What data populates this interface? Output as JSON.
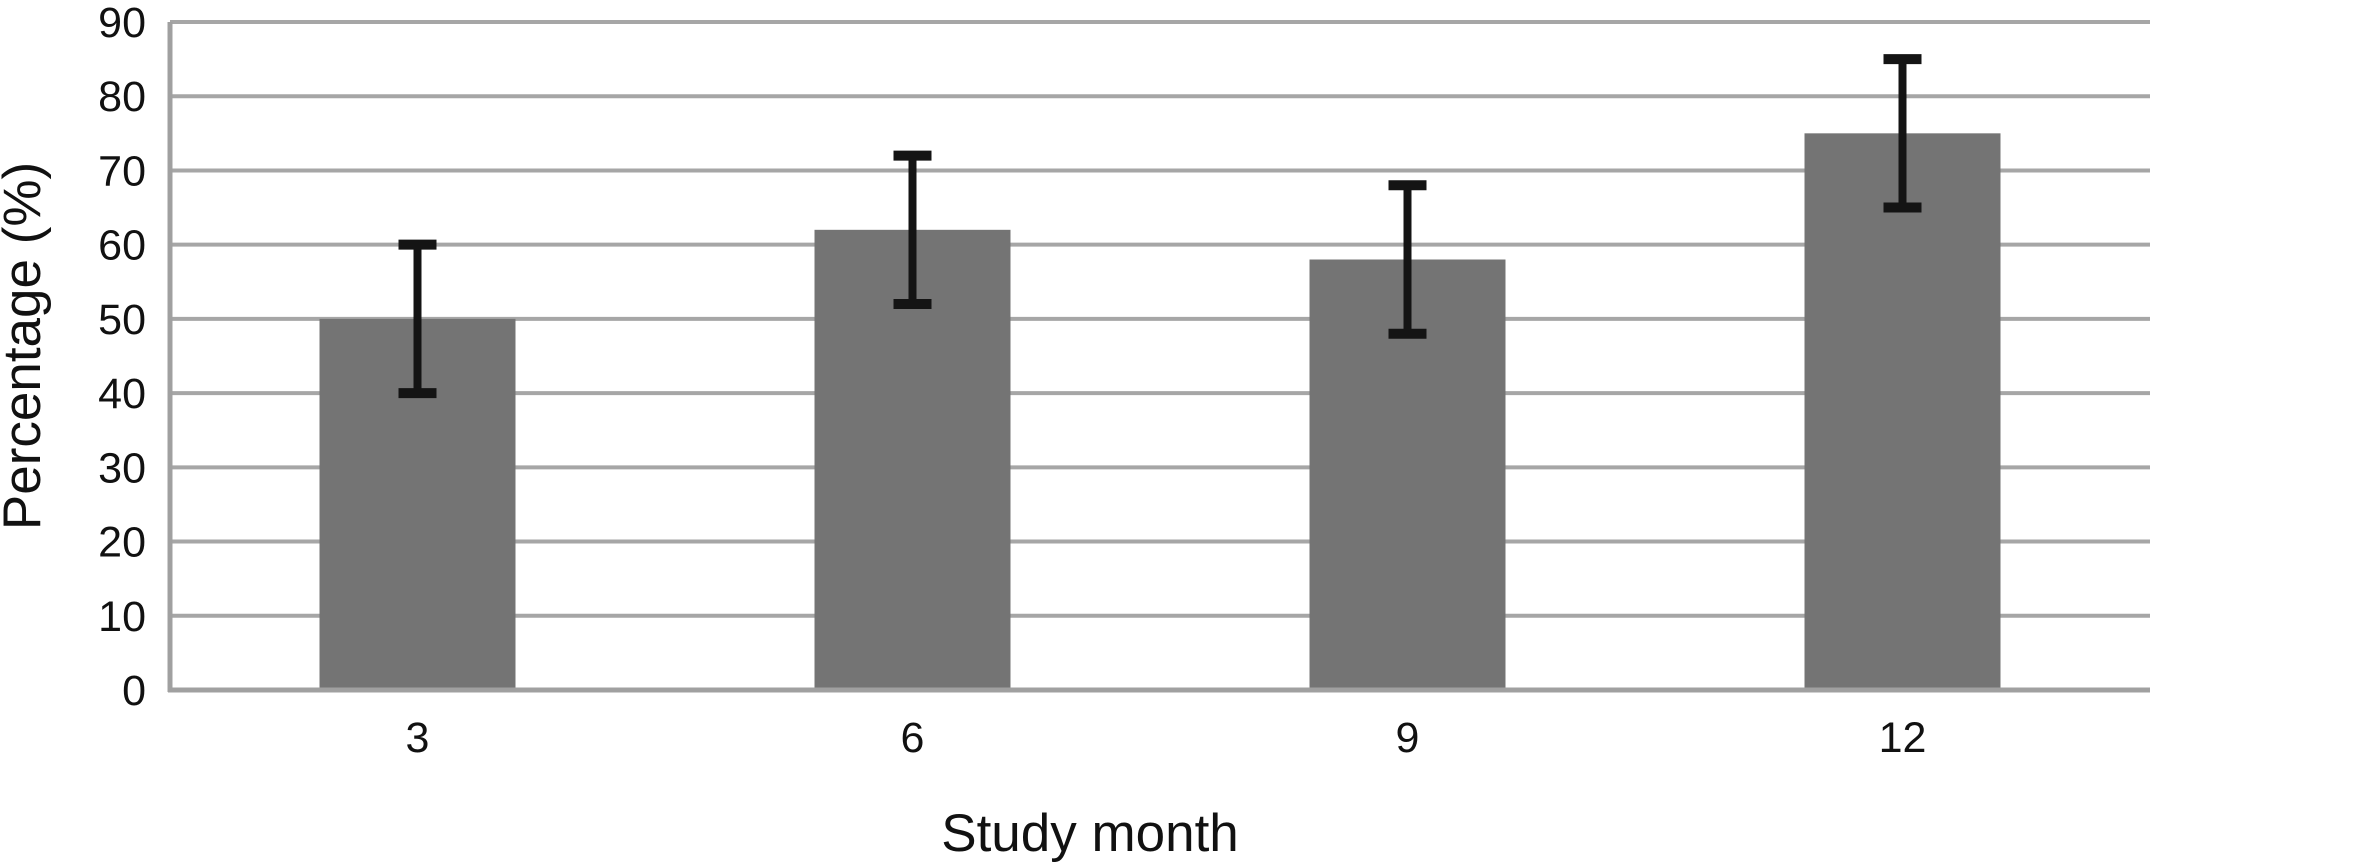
{
  "chart_data": {
    "type": "bar",
    "categories": [
      "3",
      "6",
      "9",
      "12"
    ],
    "values": [
      50,
      62,
      58,
      75
    ],
    "errors_minus": [
      10,
      10,
      10,
      10
    ],
    "errors_plus": [
      10,
      10,
      10,
      10
    ],
    "error_ranges": [
      [
        40,
        60
      ],
      [
        52,
        72
      ],
      [
        48,
        68
      ],
      [
        65,
        85
      ]
    ],
    "title": "",
    "xlabel": "Study month",
    "ylabel": "Percentage (%)",
    "ylim": [
      0,
      90
    ],
    "yticks": [
      0,
      10,
      20,
      30,
      40,
      50,
      60,
      70,
      80,
      90
    ],
    "grid": "horizontal-major",
    "legend": "none",
    "colors": {
      "bar": "#747474",
      "gridline": "#a6a6a6",
      "axis": "#a0a0a0",
      "error_bar": "#141414",
      "background": "#ffffff",
      "text": "#111111"
    }
  }
}
